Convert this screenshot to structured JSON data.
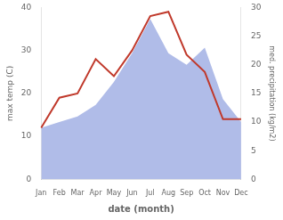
{
  "chart_data": {
    "type": "line",
    "categories": [
      "Jan",
      "Feb",
      "Mar",
      "Apr",
      "May",
      "Jun",
      "Jul",
      "Aug",
      "Sep",
      "Oct",
      "Nov",
      "Dec"
    ],
    "series": [
      {
        "type": "area",
        "color": "#b0bce8",
        "axis": "y2",
        "values": [
          9,
          10,
          11,
          13,
          17,
          22,
          28,
          22,
          20,
          23,
          14,
          10
        ]
      },
      {
        "type": "line",
        "color": "#c0392b",
        "values": [
          12,
          19,
          20,
          28,
          24,
          30,
          38,
          39,
          29,
          25,
          14,
          14
        ]
      }
    ],
    "xlabel": "date (month)",
    "ylabel": "max temp (C)",
    "y2label": "med. precipitation (kg/m2)",
    "ylim": [
      0,
      40
    ],
    "yticks": [
      0,
      10,
      20,
      30,
      40
    ],
    "y2lim": [
      0,
      30
    ],
    "y2ticks": [
      0,
      5,
      10,
      15,
      20,
      25,
      30
    ],
    "grid": false
  }
}
